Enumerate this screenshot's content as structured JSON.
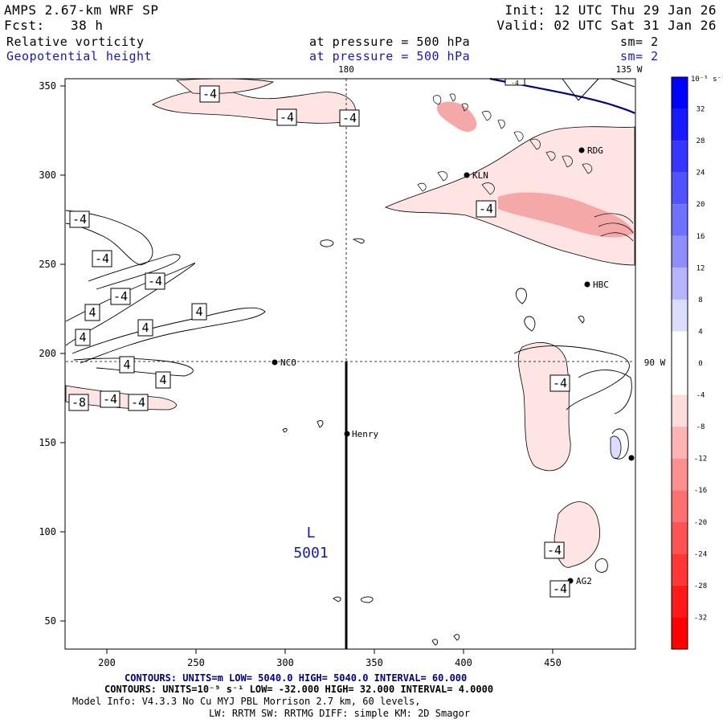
{
  "header": {
    "model": "AMPS 2.67-km WRF SP",
    "init": "Init: 12 UTC Thu 29 Jan 26",
    "fcst_label": "Fcst:",
    "fcst_value": "38 h",
    "valid": "Valid: 02 UTC Sat 31 Jan 26",
    "field1": {
      "name": "Relative vorticity",
      "level": "at pressure =  500 hPa",
      "smooth": "sm= 2"
    },
    "field2": {
      "name": "Geopotential height",
      "level": "at pressure =  500 hPa",
      "smooth": "sm= 2"
    }
  },
  "map": {
    "lon_top_left": "180",
    "lon_top_right": "135 W",
    "lon_right": "90 W",
    "low_label": "L",
    "low_value": "5001",
    "x_ticks": [
      "200",
      "250",
      "300",
      "350",
      "400",
      "450"
    ],
    "y_ticks": [
      "350",
      "300",
      "250",
      "200",
      "150",
      "100",
      "50"
    ],
    "stations": [
      {
        "name": "NCO"
      },
      {
        "name": "Henry"
      },
      {
        "name": "KLN"
      },
      {
        "name": "RDG"
      },
      {
        "name": "HBC"
      },
      {
        "name": "AG2"
      }
    ],
    "contour_labels": [
      "-4",
      "-4",
      "-4",
      "-4",
      "-4",
      "-4",
      "-4",
      "-4",
      "4",
      "4",
      "4",
      "4",
      "4",
      "4",
      "-4",
      "-8",
      "-4",
      "-4",
      "-4",
      "-4",
      "-4"
    ]
  },
  "colorbar": {
    "unit": "10⁻⁵ s⁻¹",
    "levels": [
      "32",
      "28",
      "24",
      "20",
      "16",
      "12",
      "8",
      "4",
      "0",
      "-4",
      "-8",
      "-12",
      "-16",
      "-20",
      "-24",
      "-28",
      "-32"
    ],
    "colors": [
      "#0000ff",
      "#1a1aff",
      "#3636ff",
      "#5252ff",
      "#7070ff",
      "#8e8eff",
      "#b4b4ff",
      "#dcdcff",
      "#ffffff",
      "#ffffff",
      "#ffdcdc",
      "#ffb4b4",
      "#ff8e8e",
      "#ff7070",
      "#ff5252",
      "#ff3636",
      "#ff1a1a",
      "#ff0000"
    ]
  },
  "footer": {
    "line1": "CONTOURS:  UNITS=m  LOW=  5040.0      HIGH=  5040.0      INTERVAL=  60.000",
    "line2": "CONTOURS:  UNITS=10⁻⁵ s⁻¹  LOW= -32.000      HIGH=  32.000      INTERVAL=  4.0000",
    "line3": "Model Info: V4.3.3    No Cu    MYJ PBL  Morrison         2.7 km,  60 levels,",
    "line4": "LW: RRTM SW: RRTMG   DIFF: simple KM: 2D Smagor"
  }
}
